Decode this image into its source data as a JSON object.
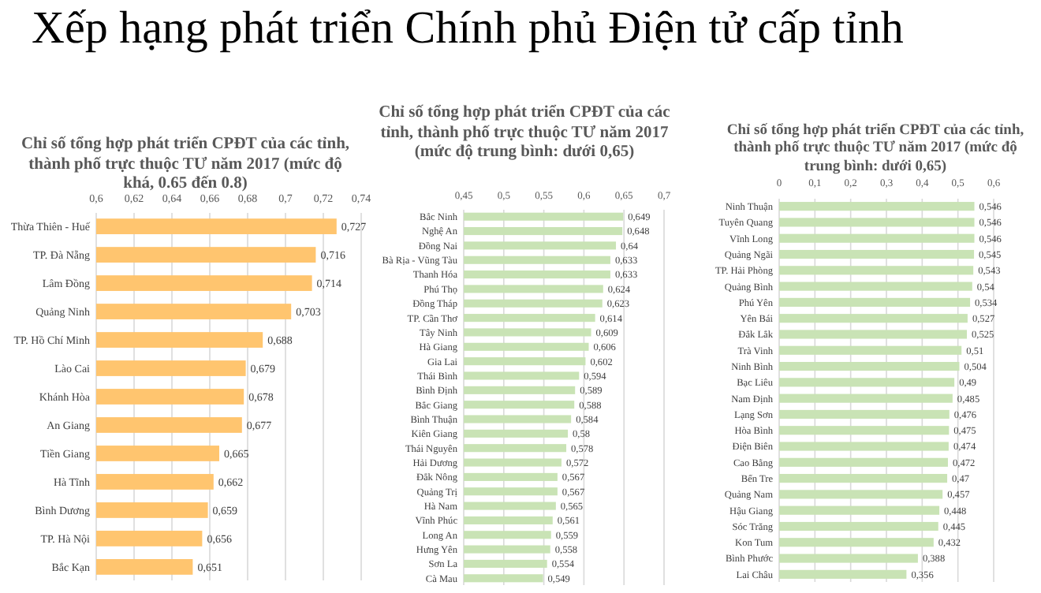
{
  "chart_data": [
    {
      "type": "other",
      "title": "Xếp hạng phát triển Chính phủ Điện tử cấp tỉnh"
    },
    {
      "type": "bar",
      "orientation": "horizontal",
      "title": "Chỉ số tổng hợp phát triển CPĐT của các tỉnh, thành phố trực thuộc TƯ năm 2017 (mức độ khá, 0.65 đến 0.8)",
      "color": "#ffc56f",
      "grid": "x",
      "xlim": [
        0.6,
        0.74
      ],
      "xticks": [
        {
          "value": 0.6,
          "label": "0,6"
        },
        {
          "value": 0.62,
          "label": "0,62"
        },
        {
          "value": 0.64,
          "label": "0,64"
        },
        {
          "value": 0.66,
          "label": "0,66"
        },
        {
          "value": 0.68,
          "label": "0,68"
        },
        {
          "value": 0.7,
          "label": "0,7"
        },
        {
          "value": 0.72,
          "label": "0,72"
        },
        {
          "value": 0.74,
          "label": "0,74"
        }
      ],
      "categories": [
        "Thừa Thiên - Huế",
        "TP. Đà Nẵng",
        "Lâm Đồng",
        "Quảng Ninh",
        "TP. Hồ Chí Minh",
        "Lào Cai",
        "Khánh Hòa",
        "An Giang",
        "Tiền Giang",
        "Hà Tĩnh",
        "Bình Dương",
        "TP. Hà Nội",
        "Bắc Kạn"
      ],
      "values": [
        0.727,
        0.716,
        0.714,
        0.703,
        0.688,
        0.679,
        0.678,
        0.677,
        0.665,
        0.662,
        0.659,
        0.656,
        0.651
      ],
      "value_labels": [
        "0,727",
        "0,716",
        "0,714",
        "0,703",
        "0,688",
        "0,679",
        "0,678",
        "0,677",
        "0,665",
        "0,662",
        "0,659",
        "0,656",
        "0,651"
      ]
    },
    {
      "type": "bar",
      "orientation": "horizontal",
      "title": "Chỉ số tổng hợp phát triển CPĐT của các tỉnh, thành phố trực thuộc TƯ năm 2017 (mức độ trung bình: dưới 0,65)",
      "color": "#c9e3b5",
      "grid": "x",
      "xlim": [
        0.45,
        0.7
      ],
      "xticks": [
        {
          "value": 0.45,
          "label": "0,45"
        },
        {
          "value": 0.5,
          "label": "0,5"
        },
        {
          "value": 0.55,
          "label": "0,55"
        },
        {
          "value": 0.6,
          "label": "0,6"
        },
        {
          "value": 0.65,
          "label": "0,65"
        },
        {
          "value": 0.7,
          "label": "0,7"
        }
      ],
      "categories": [
        "Bắc Ninh",
        "Nghệ An",
        "Đồng Nai",
        "Bà Rịa - Vũng Tàu",
        "Thanh Hóa",
        "Phú Thọ",
        "Đồng Tháp",
        "TP. Cần Thơ",
        "Tây Ninh",
        "Hà Giang",
        "Gia Lai",
        "Thái Bình",
        "Bình Định",
        "Bắc Giang",
        "Bình Thuận",
        "Kiên Giang",
        "Thái Nguyên",
        "Hải Dương",
        "Đắk Nông",
        "Quảng Trị",
        "Hà Nam",
        "Vĩnh Phúc",
        "Long An",
        "Hưng Yên",
        "Sơn La",
        "Cà Mau"
      ],
      "values": [
        0.649,
        0.648,
        0.64,
        0.633,
        0.633,
        0.624,
        0.623,
        0.614,
        0.609,
        0.606,
        0.602,
        0.594,
        0.589,
        0.588,
        0.584,
        0.58,
        0.578,
        0.572,
        0.567,
        0.567,
        0.565,
        0.561,
        0.559,
        0.558,
        0.554,
        0.549
      ],
      "value_labels": [
        "0,649",
        "0,648",
        "0,64",
        "0,633",
        "0,633",
        "0,624",
        "0,623",
        "0,614",
        "0,609",
        "0,606",
        "0,602",
        "0,594",
        "0,589",
        "0,588",
        "0,584",
        "0,58",
        "0,578",
        "0,572",
        "0,567",
        "0,567",
        "0,565",
        "0,561",
        "0,559",
        "0,558",
        "0,554",
        "0,549"
      ]
    },
    {
      "type": "bar",
      "orientation": "horizontal",
      "title": "Chỉ số tổng hợp phát triển CPĐT của các tỉnh, thành phố trực thuộc TƯ năm 2017 (mức độ trung bình: dưới 0,65)",
      "color": "#c9e3b5",
      "grid": "x",
      "xlim": [
        0,
        0.6
      ],
      "xticks": [
        0,
        {
          "value": 0.1,
          "label": "0,1"
        },
        {
          "value": 0.2,
          "label": "0,2"
        },
        {
          "value": 0.3,
          "label": "0,3"
        },
        {
          "value": 0.4,
          "label": "0,4"
        },
        {
          "value": 0.5,
          "label": "0,5"
        },
        {
          "value": 0.6,
          "label": "0,6"
        }
      ],
      "categories": [
        "Ninh Thuận",
        "Tuyên Quang",
        "Vĩnh Long",
        "Quảng Ngãi",
        "TP. Hải Phòng",
        "Quảng Bình",
        "Phú Yên",
        "Yên Bái",
        "Đắk Lắk",
        "Trà Vinh",
        "Ninh Bình",
        "Bạc Liêu",
        "Nam Định",
        "Lạng Sơn",
        "Hòa Bình",
        "Điện Biên",
        "Cao Bằng",
        "Bến Tre",
        "Quảng Nam",
        "Hậu Giang",
        "Sóc Trăng",
        "Kon Tum",
        "Bình Phước",
        "Lai Châu"
      ],
      "values": [
        0.546,
        0.546,
        0.546,
        0.545,
        0.543,
        0.54,
        0.534,
        0.527,
        0.525,
        0.51,
        0.504,
        0.49,
        0.485,
        0.476,
        0.475,
        0.474,
        0.472,
        0.47,
        0.457,
        0.448,
        0.445,
        0.432,
        0.388,
        0.356
      ],
      "value_labels": [
        "0,546",
        "0,546",
        "0,546",
        "0,545",
        "0,543",
        "0,54",
        "0,534",
        "0,527",
        "0,525",
        "0,51",
        "0,504",
        "0,49",
        "0,485",
        "0,476",
        "0,475",
        "0,474",
        "0,472",
        "0,47",
        "0,457",
        "0,448",
        "0,445",
        "0,432",
        "0,388",
        "0,356"
      ]
    }
  ]
}
